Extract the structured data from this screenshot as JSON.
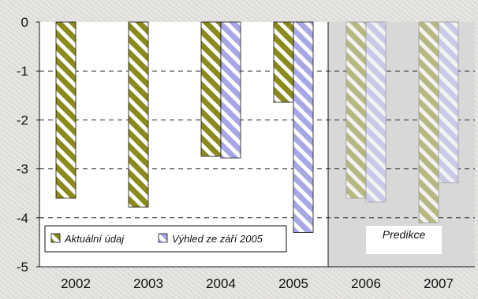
{
  "chart_data": {
    "type": "bar",
    "categories": [
      "2002",
      "2003",
      "2004",
      "2005",
      "2006",
      "2007"
    ],
    "series": [
      {
        "name": "Aktuální údaj",
        "values": [
          -3.6,
          -3.78,
          -2.74,
          -1.64,
          -3.6,
          -4.1
        ]
      },
      {
        "name": "Výhled ze září 2005",
        "values": [
          null,
          null,
          -2.78,
          -4.3,
          -3.68,
          -3.28
        ]
      }
    ],
    "yticks": [
      0,
      -1,
      -2,
      -3,
      -4,
      -5
    ],
    "ylim": [
      -5,
      0
    ],
    "grid": true,
    "forecast_region": {
      "from": "2006",
      "to": "2007",
      "label": "Predikce"
    },
    "legend": {
      "position": "bottom-left"
    },
    "colors": {
      "actual": "#8b8a1c",
      "outlook": "#a7a7e6",
      "actual_faded": "#b7b782",
      "outlook_faded": "#c9c9e8",
      "plot_bg": "#ffffff",
      "forecast_bg": "#d8d8d8"
    }
  }
}
